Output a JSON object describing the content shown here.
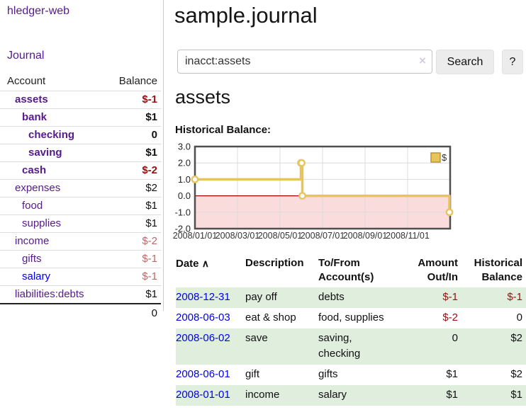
{
  "colors": {
    "link_purple": "#551a8b",
    "link_blue": "#0000ee",
    "negative_dark_red": "#971111",
    "negative_muted_red": "#c06868",
    "row_stripe_green": "#dfeedd",
    "chart_line_gold": "#e7c45c",
    "chart_negative_pink": "#fadcdc",
    "chart_zero_line_red": "#a40000"
  },
  "sidebar": {
    "brand": "hledger-web",
    "journal_link": "Journal",
    "table": {
      "headers": {
        "account": "Account",
        "balance": "Balance"
      },
      "rows": [
        {
          "name": "assets",
          "depth": 1,
          "bold": true,
          "link_color": "purple",
          "balance": "$-1",
          "balance_class": "neg"
        },
        {
          "name": "bank",
          "depth": 2,
          "bold": true,
          "link_color": "purple",
          "balance": "$1",
          "balance_class": ""
        },
        {
          "name": "checking",
          "depth": 3,
          "bold": true,
          "link_color": "purple",
          "balance": "0",
          "balance_class": ""
        },
        {
          "name": "saving",
          "depth": 3,
          "bold": true,
          "link_color": "purple",
          "balance": "$1",
          "balance_class": ""
        },
        {
          "name": "cash",
          "depth": 2,
          "bold": true,
          "link_color": "purple",
          "balance": "$-2",
          "balance_class": "neg"
        },
        {
          "name": "expenses",
          "depth": 1,
          "bold": false,
          "link_color": "purple",
          "balance": "$2",
          "balance_class": ""
        },
        {
          "name": "food",
          "depth": 2,
          "bold": false,
          "link_color": "purple",
          "balance": "$1",
          "balance_class": ""
        },
        {
          "name": "supplies",
          "depth": 2,
          "bold": false,
          "link_color": "purple",
          "balance": "$1",
          "balance_class": ""
        },
        {
          "name": "income",
          "depth": 1,
          "bold": false,
          "link_color": "purple",
          "balance": "$-2",
          "balance_class": "negmuted"
        },
        {
          "name": "gifts",
          "depth": 2,
          "bold": false,
          "link_color": "purple",
          "balance": "$-1",
          "balance_class": "negmuted"
        },
        {
          "name": "salary",
          "depth": 2,
          "bold": false,
          "link_color": "blue",
          "balance": "$-1",
          "balance_class": "negmuted"
        },
        {
          "name": "liabilities:debts",
          "depth": 1,
          "bold": false,
          "link_color": "purple",
          "balance": "$1",
          "balance_class": ""
        }
      ],
      "total": "0"
    }
  },
  "main": {
    "title": "sample.journal",
    "search": {
      "value": "inacct:assets",
      "clear_icon": "×",
      "search_button": "Search",
      "help_button": "?"
    },
    "account_heading": "assets",
    "chart_label": "Historical Balance:"
  },
  "chart_data": {
    "type": "line",
    "title": "Historical Balance",
    "step": "after",
    "legend": [
      {
        "label": "$",
        "color": "#e7c45c"
      }
    ],
    "ylim": [
      -2,
      3
    ],
    "y_ticks": [
      "3.0",
      "2.0",
      "1.0",
      "0.0",
      "-1.0",
      "-2.0"
    ],
    "xlim_days": [
      0,
      366
    ],
    "x_ticks": [
      {
        "label": "2008/01/01",
        "day": 0
      },
      {
        "label": "2008/03/01",
        "day": 61
      },
      {
        "label": "2008/05/01",
        "day": 122
      },
      {
        "label": "2008/07/01",
        "day": 183
      },
      {
        "label": "2008/09/01",
        "day": 244
      },
      {
        "label": "2008/11/01",
        "day": 305
      }
    ],
    "grid": true,
    "legend_position": "top-right",
    "negative_region_shaded": true,
    "series": [
      {
        "name": "$",
        "points": [
          {
            "date": "2008-01-01",
            "day": 0,
            "y": 1
          },
          {
            "date": "2008-06-01",
            "day": 152,
            "y": 2
          },
          {
            "date": "2008-06-02",
            "day": 153,
            "y": 2
          },
          {
            "date": "2008-06-03",
            "day": 154,
            "y": 0
          },
          {
            "date": "2008-12-31",
            "day": 365,
            "y": -1
          }
        ]
      }
    ]
  },
  "transactions": {
    "headers": {
      "date": "Date",
      "sort_indicator": "∧",
      "description": "Description",
      "accounts": "To/From Account(s)",
      "amount": "Amount Out/In",
      "balance": "Historical Balance"
    },
    "rows": [
      {
        "date": "2008-12-31",
        "description": "pay off",
        "accounts": "debts",
        "amount": "$-1",
        "amount_class": "neg",
        "balance": "$-1",
        "balance_class": "neg"
      },
      {
        "date": "2008-06-03",
        "description": "eat & shop",
        "accounts": "food, supplies",
        "amount": "$-2",
        "amount_class": "neg",
        "balance": "0",
        "balance_class": ""
      },
      {
        "date": "2008-06-02",
        "description": "save",
        "accounts": "saving, checking",
        "amount": "0",
        "amount_class": "",
        "balance": "$2",
        "balance_class": ""
      },
      {
        "date": "2008-06-01",
        "description": "gift",
        "accounts": "gifts",
        "amount": "$1",
        "amount_class": "",
        "balance": "$2",
        "balance_class": ""
      },
      {
        "date": "2008-01-01",
        "description": "income",
        "accounts": "salary",
        "amount": "$1",
        "amount_class": "",
        "balance": "$1",
        "balance_class": ""
      }
    ]
  }
}
